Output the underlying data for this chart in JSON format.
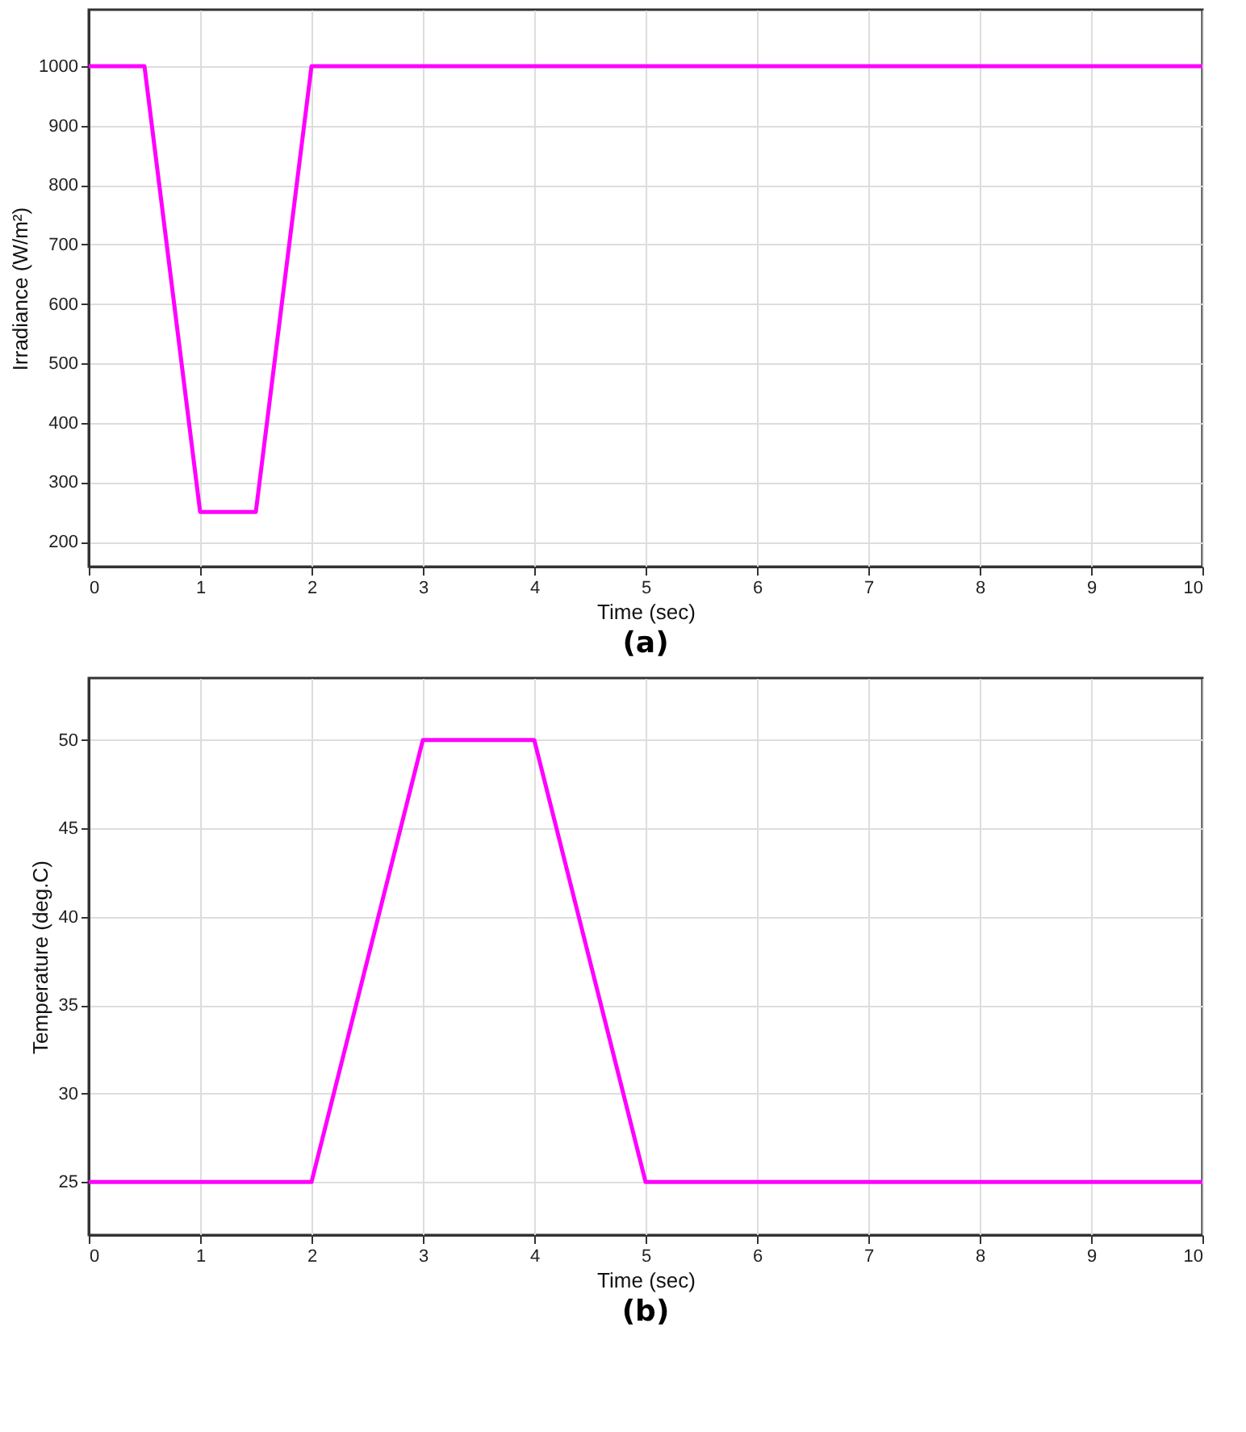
{
  "chart_data": [
    {
      "type": "line",
      "title": "(a)",
      "xlabel": "Time (sec)",
      "ylabel": "Irradiance (W/m²)",
      "x": [
        0,
        0.5,
        1,
        1.5,
        2,
        10
      ],
      "series": [
        {
          "color": "#ff00ff",
          "values": [
            1000,
            1000,
            250,
            250,
            1000,
            1000
          ]
        }
      ],
      "xlim": [
        0,
        10
      ],
      "xticks": [
        0,
        1,
        2,
        3,
        4,
        5,
        6,
        7,
        8,
        9,
        10
      ],
      "ylim": [
        158,
        1095
      ],
      "yticks": [
        200,
        300,
        400,
        500,
        600,
        700,
        800,
        900,
        1000
      ],
      "grid": true,
      "legend": false
    },
    {
      "type": "line",
      "title": "(b)",
      "xlabel": "Time (sec)",
      "ylabel": "Temperature (deg.C)",
      "x": [
        0,
        2,
        3,
        4,
        5,
        10
      ],
      "series": [
        {
          "color": "#ff00ff",
          "values": [
            25,
            25,
            50,
            50,
            25,
            25
          ]
        }
      ],
      "xlim": [
        0,
        10
      ],
      "xticks": [
        0,
        1,
        2,
        3,
        4,
        5,
        6,
        7,
        8,
        9,
        10
      ],
      "ylim": [
        22,
        53.5
      ],
      "yticks": [
        25,
        30,
        35,
        40,
        45,
        50
      ],
      "grid": true,
      "legend": false
    }
  ]
}
